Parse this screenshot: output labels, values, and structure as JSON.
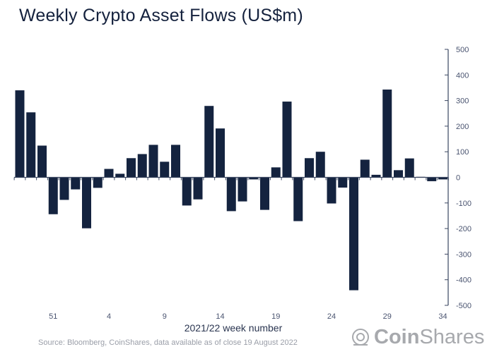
{
  "chart_data": {
    "type": "bar",
    "title": "Weekly Crypto Asset Flows (US$m)",
    "xlabel": "2021/22 week number",
    "ylabel": "",
    "ylim": [
      -500,
      500
    ],
    "yticks": [
      500,
      400,
      300,
      200,
      100,
      0,
      -100,
      -200,
      -300,
      -400,
      -500
    ],
    "y_axis_position": "right",
    "grid": false,
    "categories": [
      "48",
      "49",
      "50",
      "51",
      "52",
      "1",
      "2",
      "3",
      "4",
      "5",
      "6",
      "7",
      "8",
      "9",
      "10",
      "11",
      "12",
      "13",
      "14",
      "15",
      "16",
      "17",
      "18",
      "19",
      "20",
      "21",
      "22",
      "23",
      "24",
      "25",
      "26",
      "27",
      "28",
      "29",
      "30",
      "31",
      "32",
      "33",
      "34"
    ],
    "xtick_labels": [
      "51",
      "4",
      "9",
      "14",
      "19",
      "24",
      "29",
      "34"
    ],
    "values": [
      340,
      254,
      124,
      -144,
      -88,
      -47,
      -199,
      -41,
      33,
      14,
      75,
      91,
      127,
      61,
      127,
      -110,
      -86,
      279,
      191,
      -132,
      -94,
      -8,
      -127,
      39,
      296,
      -171,
      75,
      100,
      -102,
      -40,
      -441,
      69,
      10,
      343,
      28,
      74,
      2,
      -15,
      -8
    ],
    "bar_color": "#14233f"
  },
  "source": "Source: Bloomberg, CoinShares, data available as of close 19 August 2022",
  "logo": {
    "part1": "Coin",
    "part2": "Shares"
  }
}
